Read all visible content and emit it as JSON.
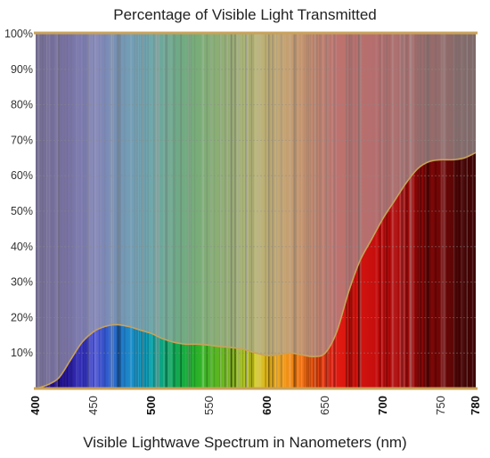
{
  "chart_data": {
    "type": "area",
    "title": "Percentage of Visible Light Transmitted",
    "xlabel": "Visible Lightwave Spectrum in Nanometers (nm)",
    "ylabel": "",
    "xlim": [
      400,
      780
    ],
    "ylim": [
      0,
      100
    ],
    "y_ticks": [
      {
        "value": 10,
        "label": "10%"
      },
      {
        "value": 20,
        "label": "20%"
      },
      {
        "value": 30,
        "label": "30%"
      },
      {
        "value": 40,
        "label": "40%"
      },
      {
        "value": 50,
        "label": "50%"
      },
      {
        "value": 60,
        "label": "60%"
      },
      {
        "value": 70,
        "label": "70%"
      },
      {
        "value": 80,
        "label": "80%"
      },
      {
        "value": 90,
        "label": "90%"
      },
      {
        "value": 100,
        "label": "100%"
      }
    ],
    "x_ticks": [
      {
        "value": 400,
        "label": "400",
        "bold": true
      },
      {
        "value": 450,
        "label": "450",
        "bold": false
      },
      {
        "value": 500,
        "label": "500",
        "bold": true
      },
      {
        "value": 550,
        "label": "550",
        "bold": false
      },
      {
        "value": 600,
        "label": "600",
        "bold": true
      },
      {
        "value": 650,
        "label": "650",
        "bold": false
      },
      {
        "value": 700,
        "label": "700",
        "bold": true
      },
      {
        "value": 750,
        "label": "750",
        "bold": false
      },
      {
        "value": 780,
        "label": "780",
        "bold": true
      }
    ],
    "grid": true,
    "colors": {
      "curve": "#c9a25a",
      "frame": "#c9a25a",
      "grid": "#8a8a8a",
      "shade": "#a9a9a9"
    },
    "x": [
      400,
      410,
      420,
      430,
      440,
      450,
      460,
      470,
      480,
      490,
      500,
      510,
      520,
      530,
      540,
      550,
      560,
      570,
      580,
      590,
      600,
      610,
      620,
      630,
      640,
      650,
      660,
      670,
      680,
      690,
      700,
      710,
      720,
      730,
      740,
      750,
      760,
      770,
      780
    ],
    "values": [
      0,
      1,
      3,
      8,
      13,
      16,
      17.5,
      18,
      17.5,
      16.5,
      15.5,
      14,
      13,
      12.5,
      12.5,
      12.2,
      11.8,
      11.5,
      11,
      10,
      9.3,
      9.6,
      10,
      9.5,
      9,
      10,
      16,
      27,
      36,
      42,
      48,
      53,
      58,
      62,
      64,
      64.5,
      64.5,
      65,
      66.5
    ]
  }
}
